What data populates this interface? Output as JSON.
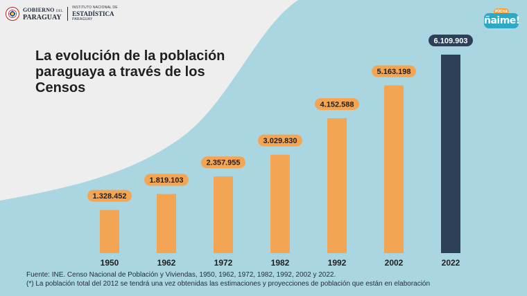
{
  "header": {
    "gov_line1": "GOBIERNO",
    "gov_line1_small": "DEL",
    "gov_line2": "PARAGUAY",
    "ine_line1": "INSTITUTO NACIONAL DE",
    "ine_line2": "ESTADÍSTICA",
    "ine_line3": "PARAGUAY"
  },
  "logo": {
    "small": "PÛCHA",
    "word": "ñaime!"
  },
  "title": "La evolución de la población paraguaya a través de los Censos",
  "footnotes": {
    "source": "Fuente: INE. Censo Nacional de Población y Viviendas, 1950, 1962, 1972, 1982, 1992, 2002 y 2022.",
    "note": "(*) La población total del 2012 se tendrá una vez obtenidas las estimaciones y proyecciones de población que están en elaboración"
  },
  "colors": {
    "background": "#a9d6e0",
    "wave": "#eeeeee",
    "bar": "#f4a553",
    "highlight_bar": "#2e4057",
    "label_pill": "#f4a553",
    "highlight_pill": "#2e4057"
  },
  "chart_data": {
    "type": "bar",
    "categories": [
      "1950",
      "1962",
      "1972",
      "1982",
      "1992",
      "2002",
      "2022"
    ],
    "values": [
      1328452,
      1819103,
      2357955,
      3029830,
      4152588,
      5163198,
      6109903
    ],
    "value_labels": [
      "1.328.452",
      "1.819.103",
      "2.357.955",
      "3.029.830",
      "4.152.588",
      "5.163.198",
      "6.109.903"
    ],
    "highlight_index": 6,
    "title": "La evolución de la población paraguaya a través de los Censos",
    "xlabel": "",
    "ylabel": "",
    "grid": false
  }
}
